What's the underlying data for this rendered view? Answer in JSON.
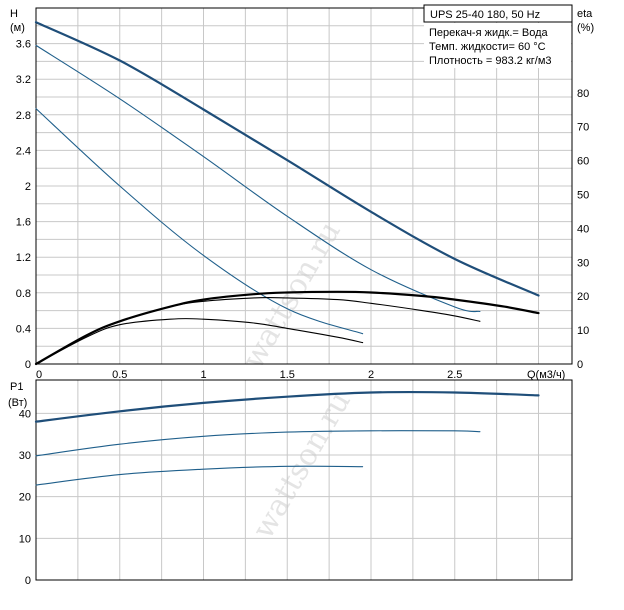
{
  "chart_data": [
    {
      "type": "line",
      "panel": "head-efficiency",
      "left_axis": {
        "label_top": "H",
        "label_unit": "(м)",
        "ylim": [
          0,
          4
        ],
        "ticks": [
          0,
          0.4,
          0.8,
          1.2,
          1.6,
          2,
          2.4,
          2.8,
          3.2,
          3.6
        ]
      },
      "right_axis": {
        "label_top": "eta",
        "label_unit": "(%)",
        "ylim": [
          0,
          105
        ],
        "ticks": [
          0,
          10,
          20,
          30,
          40,
          50,
          60,
          70,
          80
        ]
      },
      "x_axis": {
        "label": "Q(м3/ч)",
        "xlim": [
          0,
          3.2
        ],
        "ticks": [
          0,
          0.5,
          1,
          1.5,
          2,
          2.5
        ]
      },
      "grid": true,
      "legend_box": {
        "title": "UPS 25-40 180, 50 Hz",
        "lines": [
          "Перекач-я жидк.= Вода",
          "Темп. жидкости= 60 °C",
          "Плотность = 983.2 кг/м3"
        ]
      },
      "series": [
        {
          "axis": "left",
          "kind": "head",
          "color": "#1f4e79",
          "width": 2.2,
          "x": [
            0,
            0.5,
            1,
            1.5,
            2,
            2.5,
            3.0
          ],
          "y": [
            3.84,
            3.41,
            2.86,
            2.29,
            1.71,
            1.18,
            0.77
          ]
        },
        {
          "axis": "left",
          "kind": "head",
          "color": "#1f5f8b",
          "width": 1.1,
          "x": [
            0,
            0.5,
            1,
            1.5,
            2,
            2.5,
            2.65
          ],
          "y": [
            3.58,
            2.98,
            2.33,
            1.66,
            1.06,
            0.64,
            0.59
          ]
        },
        {
          "axis": "left",
          "kind": "head",
          "color": "#1f5f8b",
          "width": 1.1,
          "x": [
            0,
            0.5,
            1,
            1.5,
            1.95
          ],
          "y": [
            2.87,
            2.0,
            1.22,
            0.62,
            0.34
          ]
        },
        {
          "axis": "right",
          "kind": "efficiency",
          "color": "#000000",
          "width": 2.2,
          "x": [
            0,
            0.3,
            0.5,
            0.8,
            1.0,
            1.3,
            1.5,
            1.8,
            2.0,
            2.3,
            2.5,
            2.8,
            3.0
          ],
          "y": [
            0,
            8.4,
            12.6,
            16.9,
            19.0,
            20.6,
            21.1,
            21.3,
            21.1,
            20.1,
            19.0,
            16.9,
            15.0
          ]
        },
        {
          "axis": "right",
          "kind": "efficiency",
          "color": "#000000",
          "width": 1.1,
          "x": [
            0,
            0.3,
            0.5,
            0.8,
            1.0,
            1.3,
            1.5,
            1.8,
            2.0,
            2.3,
            2.5,
            2.65
          ],
          "y": [
            0,
            8.4,
            12.6,
            16.9,
            18.5,
            19.5,
            19.5,
            19.0,
            17.9,
            15.8,
            14.2,
            12.6
          ]
        },
        {
          "axis": "right",
          "kind": "efficiency",
          "color": "#000000",
          "width": 1.1,
          "x": [
            0,
            0.3,
            0.5,
            0.8,
            1.0,
            1.3,
            1.5,
            1.8,
            1.95
          ],
          "y": [
            0,
            7.9,
            11.6,
            13.2,
            13.2,
            12.1,
            10.5,
            7.9,
            6.3
          ]
        }
      ]
    },
    {
      "type": "line",
      "panel": "power",
      "left_axis": {
        "label_top": "P1",
        "label_unit": "(Вт)",
        "ylim": [
          0,
          48
        ],
        "ticks": [
          0,
          10,
          20,
          30,
          40
        ]
      },
      "x_axis": {
        "xlim": [
          0,
          3.2
        ]
      },
      "grid": true,
      "series": [
        {
          "color": "#1f4e79",
          "width": 2.2,
          "x": [
            0,
            0.5,
            1,
            1.5,
            2,
            2.5,
            3.0
          ],
          "y": [
            38,
            40.5,
            42.5,
            44,
            45,
            45,
            44.3
          ]
        },
        {
          "color": "#1f5f8b",
          "width": 1.1,
          "x": [
            0,
            0.5,
            1,
            1.5,
            2,
            2.5,
            2.65
          ],
          "y": [
            29.8,
            32.6,
            34.5,
            35.5,
            35.8,
            35.8,
            35.6
          ]
        },
        {
          "color": "#1f5f8b",
          "width": 1.1,
          "x": [
            0,
            0.5,
            1,
            1.5,
            1.95
          ],
          "y": [
            22.8,
            25.3,
            26.6,
            27.3,
            27.2
          ]
        }
      ]
    }
  ],
  "watermark": "wattson.ru"
}
